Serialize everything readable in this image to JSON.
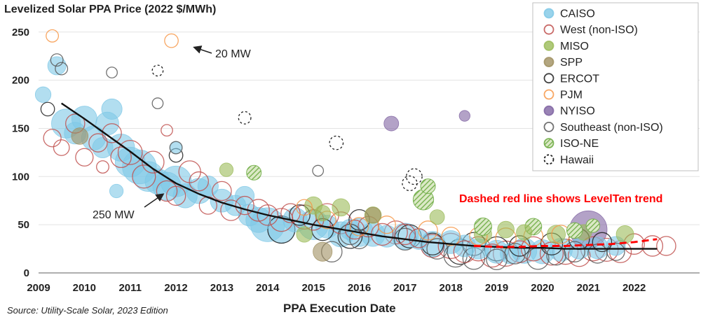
{
  "chart_data": {
    "type": "scatter",
    "title": "Levelized Solar PPA Price (2022 $/MWh)",
    "xlabel": "PPA Execution Date",
    "source": "Source: Utility-Scale Solar, 2023 Edition",
    "ylim": [
      0,
      260
    ],
    "xlim": [
      2009,
      2023
    ],
    "y_ticks": [
      "0",
      "50",
      "100",
      "150",
      "200",
      "250"
    ],
    "x_ticks": [
      "2009",
      "2010",
      "2011",
      "2012",
      "2013",
      "2014",
      "2015",
      "2016",
      "2017",
      "2018",
      "2019",
      "2020",
      "2021",
      "2022"
    ],
    "grid": "horizontal",
    "legend_position": "top-right",
    "size_legend": [
      {
        "label": "20 MW",
        "mw": 20
      },
      {
        "label": "250 MW",
        "mw": 250
      }
    ],
    "trend_annotation": "Dashed red line shows LevelTen trend",
    "legend": [
      {
        "name": "CAISO",
        "color": "#7fc8e6",
        "style": "filled"
      },
      {
        "name": "West (non-ISO)",
        "color": "#c0504d",
        "style": "open"
      },
      {
        "name": "MISO",
        "color": "#9bbb59",
        "style": "filled"
      },
      {
        "name": "SPP",
        "color": "#a09060",
        "style": "filled"
      },
      {
        "name": "ERCOT",
        "color": "#1f1f1f",
        "style": "open"
      },
      {
        "name": "PJM",
        "color": "#f79646",
        "style": "open"
      },
      {
        "name": "NYISO",
        "color": "#8064a2",
        "style": "filled"
      },
      {
        "name": "Southeast (non-ISO)",
        "color": "#595959",
        "style": "open"
      },
      {
        "name": "ISO-NE",
        "color": "#70ad47",
        "style": "hatched"
      },
      {
        "name": "Hawaii",
        "color": "#1f1f1f",
        "style": "dashed"
      }
    ],
    "series": [
      {
        "name": "CAISO",
        "points": [
          [
            2009.1,
            185,
            30
          ],
          [
            2009.4,
            215,
            45
          ],
          [
            2009.6,
            155,
            140
          ],
          [
            2009.8,
            145,
            70
          ],
          [
            2010.0,
            160,
            100
          ],
          [
            2010.2,
            140,
            90
          ],
          [
            2010.4,
            130,
            60
          ],
          [
            2010.5,
            155,
            80
          ],
          [
            2010.6,
            170,
            60
          ],
          [
            2010.8,
            130,
            120
          ],
          [
            2011.0,
            115,
            150
          ],
          [
            2011.2,
            110,
            200
          ],
          [
            2011.4,
            100,
            150
          ],
          [
            2011.6,
            95,
            100
          ],
          [
            2011.8,
            90,
            130
          ],
          [
            2012.0,
            95,
            160
          ],
          [
            2012.2,
            80,
            90
          ],
          [
            2012.5,
            85,
            100
          ],
          [
            2012.7,
            90,
            60
          ],
          [
            2013.0,
            75,
            80
          ],
          [
            2013.3,
            70,
            60
          ],
          [
            2013.5,
            80,
            50
          ],
          [
            2013.6,
            60,
            70
          ],
          [
            2013.8,
            55,
            100
          ],
          [
            2014.0,
            50,
            200
          ],
          [
            2014.3,
            45,
            120
          ],
          [
            2014.6,
            55,
            90
          ],
          [
            2015.0,
            50,
            150
          ],
          [
            2015.3,
            48,
            80
          ],
          [
            2015.6,
            40,
            100
          ],
          [
            2015.8,
            45,
            60
          ],
          [
            2016.0,
            42,
            130
          ],
          [
            2016.3,
            40,
            90
          ],
          [
            2016.6,
            38,
            70
          ],
          [
            2017.0,
            38,
            110
          ],
          [
            2017.3,
            35,
            60
          ],
          [
            2017.6,
            30,
            100
          ],
          [
            2018.0,
            32,
            80
          ],
          [
            2018.3,
            28,
            70
          ],
          [
            2018.6,
            25,
            60
          ],
          [
            2019.0,
            22,
            80
          ],
          [
            2019.3,
            20,
            60
          ],
          [
            2019.6,
            23,
            100
          ],
          [
            2020.0,
            22,
            90
          ],
          [
            2020.4,
            24,
            80
          ],
          [
            2020.8,
            25,
            60
          ],
          [
            2021.2,
            26,
            70
          ],
          [
            2021.6,
            28,
            50
          ],
          [
            2010.7,
            85,
            20
          ],
          [
            2012.0,
            130,
            15
          ]
        ]
      },
      {
        "name": "West (non-ISO)",
        "points": [
          [
            2009.3,
            140,
            40
          ],
          [
            2009.5,
            130,
            30
          ],
          [
            2009.8,
            155,
            50
          ],
          [
            2010.0,
            120,
            40
          ],
          [
            2010.3,
            135,
            45
          ],
          [
            2010.6,
            145,
            50
          ],
          [
            2010.8,
            120,
            60
          ],
          [
            2011.0,
            125,
            90
          ],
          [
            2011.3,
            100,
            80
          ],
          [
            2011.5,
            115,
            70
          ],
          [
            2011.8,
            85,
            60
          ],
          [
            2012.0,
            80,
            50
          ],
          [
            2012.3,
            105,
            70
          ],
          [
            2012.5,
            95,
            50
          ],
          [
            2012.7,
            70,
            40
          ],
          [
            2013.0,
            85,
            50
          ],
          [
            2013.2,
            65,
            60
          ],
          [
            2013.5,
            70,
            45
          ],
          [
            2013.8,
            65,
            70
          ],
          [
            2014.0,
            60,
            60
          ],
          [
            2014.3,
            55,
            80
          ],
          [
            2014.5,
            62,
            50
          ],
          [
            2014.8,
            58,
            90
          ],
          [
            2015.0,
            55,
            60
          ],
          [
            2015.3,
            60,
            80
          ],
          [
            2015.6,
            52,
            70
          ],
          [
            2015.9,
            45,
            50
          ],
          [
            2016.2,
            48,
            60
          ],
          [
            2016.5,
            40,
            70
          ],
          [
            2016.8,
            42,
            80
          ],
          [
            2017.0,
            40,
            60
          ],
          [
            2017.3,
            36,
            50
          ],
          [
            2017.6,
            28,
            80
          ],
          [
            2018.0,
            28,
            100
          ],
          [
            2018.3,
            22,
            70
          ],
          [
            2018.6,
            25,
            90
          ],
          [
            2018.9,
            18,
            80
          ],
          [
            2019.2,
            20,
            100
          ],
          [
            2019.5,
            22,
            70
          ],
          [
            2019.8,
            25,
            90
          ],
          [
            2020.2,
            20,
            80
          ],
          [
            2020.5,
            22,
            100
          ],
          [
            2020.8,
            18,
            70
          ],
          [
            2021.1,
            25,
            90
          ],
          [
            2021.4,
            24,
            80
          ],
          [
            2021.7,
            22,
            70
          ],
          [
            2022.0,
            30,
            60
          ],
          [
            2022.4,
            28,
            60
          ],
          [
            2022.7,
            28,
            50
          ],
          [
            2010.4,
            110,
            15
          ],
          [
            2011.8,
            148,
            12
          ]
        ]
      },
      {
        "name": "MISO",
        "points": [
          [
            2013.1,
            107,
            20
          ],
          [
            2015.0,
            70,
            40
          ],
          [
            2015.2,
            62,
            30
          ],
          [
            2015.6,
            68,
            40
          ],
          [
            2016.3,
            60,
            35
          ],
          [
            2017.7,
            58,
            25
          ],
          [
            2018.7,
            40,
            40
          ],
          [
            2019.2,
            45,
            35
          ],
          [
            2019.6,
            42,
            30
          ],
          [
            2020.3,
            40,
            45
          ],
          [
            2020.9,
            42,
            30
          ],
          [
            2021.8,
            40,
            40
          ],
          [
            2014.8,
            40,
            30
          ]
        ]
      },
      {
        "name": "SPP",
        "points": [
          [
            2009.9,
            142,
            35
          ],
          [
            2015.2,
            22,
            50
          ],
          [
            2016.3,
            60,
            30
          ]
        ]
      },
      {
        "name": "ERCOT",
        "points": [
          [
            2009.2,
            170,
            20
          ],
          [
            2014.3,
            45,
            120
          ],
          [
            2014.7,
            60,
            60
          ],
          [
            2015.2,
            45,
            70
          ],
          [
            2015.8,
            38,
            90
          ],
          [
            2016.0,
            55,
            60
          ],
          [
            2017.1,
            38,
            80
          ],
          [
            2017.6,
            30,
            70
          ],
          [
            2018.2,
            22,
            100
          ],
          [
            2018.5,
            30,
            80
          ],
          [
            2019.0,
            25,
            90
          ],
          [
            2019.5,
            28,
            60
          ],
          [
            2020.2,
            30,
            70
          ],
          [
            2020.8,
            35,
            60
          ],
          [
            2021.3,
            32,
            50
          ],
          [
            2012.0,
            122,
            20
          ]
        ]
      },
      {
        "name": "PJM",
        "points": [
          [
            2009.3,
            246,
            15
          ],
          [
            2011.9,
            241,
            20
          ],
          [
            2014.8,
            68,
            30
          ],
          [
            2015.3,
            55,
            40
          ],
          [
            2016.0,
            48,
            45
          ],
          [
            2016.6,
            50,
            40
          ],
          [
            2017.5,
            44,
            50
          ],
          [
            2018.0,
            38,
            45
          ],
          [
            2018.6,
            38,
            40
          ],
          [
            2019.2,
            36,
            60
          ],
          [
            2019.8,
            38,
            50
          ],
          [
            2020.4,
            40,
            45
          ]
        ]
      },
      {
        "name": "NYISO",
        "points": [
          [
            2016.7,
            155,
            25
          ],
          [
            2018.3,
            163,
            10
          ],
          [
            2021.0,
            45,
            250
          ]
        ]
      },
      {
        "name": "Southeast (non-ISO)",
        "points": [
          [
            2009.4,
            221,
            15
          ],
          [
            2009.5,
            212,
            15
          ],
          [
            2010.6,
            208,
            10
          ],
          [
            2011.6,
            176,
            10
          ],
          [
            2015.1,
            106,
            10
          ],
          [
            2015.4,
            22,
            60
          ],
          [
            2015.8,
            40,
            60
          ],
          [
            2016.0,
            35,
            50
          ],
          [
            2017.0,
            35,
            70
          ],
          [
            2017.7,
            25,
            60
          ],
          [
            2018.1,
            18,
            80
          ],
          [
            2018.5,
            15,
            70
          ],
          [
            2019.0,
            14,
            60
          ],
          [
            2019.4,
            20,
            60
          ],
          [
            2019.9,
            15,
            70
          ],
          [
            2020.3,
            18,
            50
          ],
          [
            2020.7,
            22,
            60
          ],
          [
            2021.2,
            20,
            50
          ],
          [
            2021.6,
            22,
            40
          ],
          [
            2012.0,
            130,
            15
          ]
        ]
      },
      {
        "name": "ISO-NE",
        "points": [
          [
            2013.7,
            104,
            25
          ],
          [
            2017.4,
            76,
            60
          ],
          [
            2017.5,
            90,
            25
          ],
          [
            2018.7,
            48,
            40
          ],
          [
            2019.8,
            48,
            35
          ],
          [
            2020.7,
            44,
            30
          ],
          [
            2021.1,
            49,
            20
          ]
        ]
      },
      {
        "name": "Hawaii",
        "points": [
          [
            2011.6,
            210,
            10
          ],
          [
            2013.5,
            161,
            15
          ],
          [
            2015.5,
            135,
            20
          ],
          [
            2017.2,
            100,
            30
          ],
          [
            2017.1,
            93,
            25
          ]
        ]
      }
    ],
    "trend_line": {
      "x": [
        2009.5,
        2010,
        2010.5,
        2011,
        2011.5,
        2012,
        2012.5,
        2013,
        2013.5,
        2014,
        2014.5,
        2015,
        2015.5,
        2016,
        2016.5,
        2017,
        2017.5,
        2018,
        2018.5,
        2019,
        2019.5,
        2020,
        2020.5,
        2021,
        2021.5,
        2022,
        2022.5
      ],
      "y": [
        176,
        160,
        143,
        126,
        108,
        93,
        82,
        73,
        66,
        60,
        55,
        50,
        46,
        42,
        38,
        35,
        32,
        30,
        28,
        27,
        26,
        26,
        25,
        25,
        25,
        25,
        25
      ]
    },
    "levelten_trend": {
      "x": [
        2018.5,
        2019,
        2019.5,
        2020,
        2020.5,
        2021,
        2021.5,
        2022,
        2022.5
      ],
      "y": [
        28,
        27,
        27,
        28,
        28,
        29,
        30,
        32,
        35
      ]
    }
  }
}
